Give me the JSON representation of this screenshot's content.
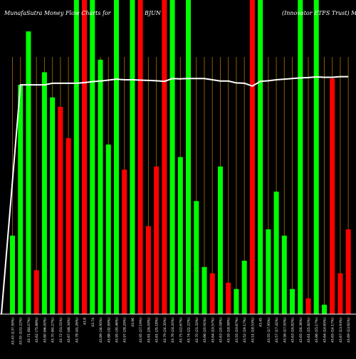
{
  "header": {
    "left": "MunafaSutra  Money Flow  Charts for",
    "symbol": "BJUN",
    "right": "(Innovator ETFS Trust) Munafa"
  },
  "chart_data": {
    "type": "bar",
    "ylim": [
      0,
      100
    ],
    "colors": {
      "up": "#00ff00",
      "down": "#ff0000",
      "line": "#ffffff",
      "grid": "#8b5a0a"
    },
    "bars": [
      {
        "label": "43.43 (137.99%)",
        "value": 25,
        "color": "up"
      },
      {
        "label": "43.55 (102.22%)",
        "value": 73,
        "color": "up"
      },
      {
        "label": "43.71 (84.07%)",
        "value": 90,
        "color": "up"
      },
      {
        "label": "43.62 (75.88%)",
        "value": 14,
        "color": "down"
      },
      {
        "label": "43.60 (66.00%)",
        "value": 77,
        "color": "up"
      },
      {
        "label": "43.70 (60.27%)",
        "value": 69,
        "color": "up"
      },
      {
        "label": "43.72 (51.01%)",
        "value": 66,
        "color": "down"
      },
      {
        "label": "43.67 (48.34%)",
        "value": 56,
        "color": "down"
      },
      {
        "label": "43.78 (41.26%)",
        "value": 100,
        "color": "up"
      },
      {
        "label": "43.8",
        "value": 100,
        "color": "down"
      },
      {
        "label": "43.74",
        "value": 100,
        "color": "up"
      },
      {
        "label": "43.89 (34.95%)",
        "value": 81,
        "color": "up"
      },
      {
        "label": "43.88 (32.99%)",
        "value": 54,
        "color": "up"
      },
      {
        "label": "43.95 (30.46%)",
        "value": 100,
        "color": "up"
      },
      {
        "label": "43.97 (28.29%)",
        "value": 46,
        "color": "down"
      },
      {
        "label": "43.96",
        "value": 100,
        "color": "up"
      },
      {
        "label": "43.95 (27.19%)",
        "value": 100,
        "color": "down"
      },
      {
        "label": "43.81 (26.09%)",
        "value": 28,
        "color": "down"
      },
      {
        "label": "43.81 (25.18%)",
        "value": 47,
        "color": "down"
      },
      {
        "label": "43.79 (24.35%)",
        "value": 100,
        "color": "down"
      },
      {
        "label": "43.76 (24.20%)",
        "value": 100,
        "color": "up"
      },
      {
        "label": "43.75 (22.67%)",
        "value": 50,
        "color": "up"
      },
      {
        "label": "43.74 (22.22%)",
        "value": 100,
        "color": "up"
      },
      {
        "label": "43.70 (21.32%)",
        "value": 36,
        "color": "up"
      },
      {
        "label": "43.66 (20.91%)",
        "value": 15,
        "color": "up"
      },
      {
        "label": "43.64 (19.57%)",
        "value": 13,
        "color": "down"
      },
      {
        "label": "43.63 (20.08%)",
        "value": 47,
        "color": "up"
      },
      {
        "label": "43.59 (18.98%)",
        "value": 10,
        "color": "down"
      },
      {
        "label": "43.55 (19.67%)",
        "value": 8,
        "color": "up"
      },
      {
        "label": "43.52 (19.17%)",
        "value": 17,
        "color": "up"
      },
      {
        "label": "43.51 (18.53%)",
        "value": 100,
        "color": "down"
      },
      {
        "label": "43.45",
        "value": 100,
        "color": "up"
      },
      {
        "label": "43.55 (17.95%)",
        "value": 27,
        "color": "up"
      },
      {
        "label": "43.57 (17.41%)",
        "value": 39,
        "color": "up"
      },
      {
        "label": "43.56 (17.00%)",
        "value": 25,
        "color": "up"
      },
      {
        "label": "43.63 (16.82%)",
        "value": 8,
        "color": "up"
      },
      {
        "label": "43.65 (16.36%)",
        "value": 100,
        "color": "up"
      },
      {
        "label": "43.61 (15.82%)",
        "value": 5,
        "color": "down"
      },
      {
        "label": "43.66 (15.17%)",
        "value": 100,
        "color": "up"
      },
      {
        "label": "43.64 (14.65%)",
        "value": 3,
        "color": "up"
      },
      {
        "label": "43.65 (14.17%)",
        "value": 75,
        "color": "down"
      },
      {
        "label": "43.67 (13.93%)",
        "value": 13,
        "color": "down"
      },
      {
        "label": "43.69 (13.61%)",
        "value": 27,
        "color": "down"
      }
    ],
    "line": [
      0,
      73,
      73,
      73,
      73,
      73.5,
      73.5,
      73.5,
      73.5,
      73.7,
      74,
      74.2,
      74.5,
      74.8,
      74.6,
      74.6,
      74.5,
      74.4,
      74.3,
      74.1,
      75,
      74.9,
      75,
      75,
      75,
      74.6,
      74.2,
      74.2,
      73.6,
      73.5,
      72.6,
      74.1,
      74.3,
      74.6,
      74.8,
      75,
      75.2,
      75.3,
      75.5,
      75.4,
      75.4,
      75.6,
      75.6
    ]
  }
}
